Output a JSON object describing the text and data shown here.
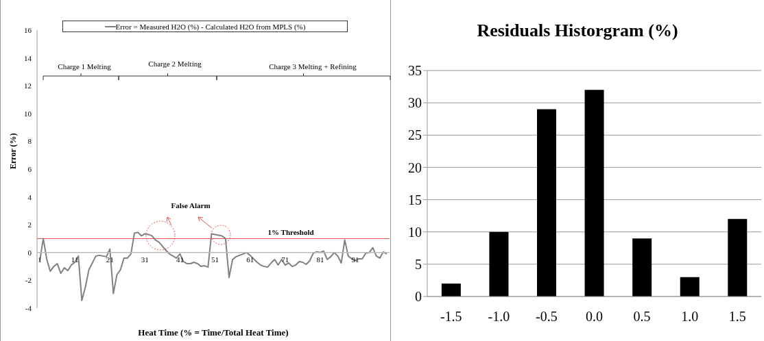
{
  "chart_data": [
    {
      "type": "line",
      "xlabel": "Heat Time (% = Time/Total Heat Time)",
      "ylabel": "Error (%)",
      "categories": [
        "1",
        null,
        null,
        null,
        null,
        null,
        null,
        null,
        null,
        null,
        "11",
        null,
        null,
        null,
        null,
        null,
        null,
        null,
        null,
        null,
        "21",
        null,
        null,
        null,
        null,
        null,
        null,
        null,
        null,
        null,
        "31",
        null,
        null,
        null,
        null,
        null,
        null,
        null,
        null,
        null,
        "41",
        null,
        null,
        null,
        null,
        null,
        null,
        null,
        null,
        null,
        "51",
        null,
        null,
        null,
        null,
        null,
        null,
        null,
        null,
        null,
        "61",
        null,
        null,
        null,
        null,
        null,
        null,
        null,
        null,
        null,
        "71",
        null,
        null,
        null,
        null,
        null,
        null,
        null,
        null,
        null,
        "81",
        null,
        null,
        null,
        null,
        null,
        null,
        null,
        null,
        null,
        "91",
        null,
        null,
        null,
        null,
        null,
        null,
        null,
        null,
        null
      ],
      "series": [
        {
          "name": "Error = Measured H2O (%) - Calculated H2O from MPLS (%)",
          "color": "#808080",
          "values": [
            -0.6,
            1.0,
            -0.5,
            -1.35,
            -1.0,
            -0.8,
            -1.5,
            -1.1,
            -1.3,
            -0.9,
            -0.7,
            -0.25,
            -3.45,
            -2.5,
            -1.25,
            -0.75,
            -0.25,
            -0.2,
            -0.25,
            -0.3,
            0.25,
            -2.95,
            -1.6,
            -1.25,
            -0.4,
            -0.4,
            -0.1,
            1.4,
            1.45,
            1.2,
            1.35,
            1.3,
            1.2,
            0.9,
            0.75,
            0.45,
            0.15,
            -0.1,
            -0.25,
            -0.4,
            -0.1,
            -0.65,
            -0.8,
            -0.8,
            -0.7,
            -0.8,
            -1.0,
            -0.95,
            -1.05,
            1.35,
            1.3,
            1.25,
            1.2,
            1.0,
            -1.8,
            -0.5,
            -0.3,
            -0.2,
            -0.1,
            0.0,
            -0.2,
            -0.45,
            -0.7,
            -0.9,
            -1.0,
            -1.05,
            -0.75,
            -0.5,
            -0.9,
            -0.5,
            -0.9,
            -0.75,
            -1.0,
            -0.9,
            -0.65,
            -0.7,
            -0.85,
            -0.6,
            -0.05,
            0.05,
            0.0,
            0.1,
            -0.5,
            -0.3,
            0.0,
            -0.25,
            -0.75,
            0.9,
            -0.25,
            -0.45,
            -0.6,
            -0.45,
            -0.45,
            -0.05,
            0.0,
            0.35,
            -0.25,
            -0.4,
            0.05,
            -0.1
          ]
        }
      ],
      "ylim": [
        -4,
        16
      ],
      "yticks": [
        -4,
        -2,
        0,
        2,
        4,
        6,
        8,
        10,
        12,
        14,
        16
      ],
      "grid": false,
      "legend": "top",
      "marker": "none",
      "line_style": "solid",
      "ref_lines": [
        {
          "axis": "y",
          "value": 1,
          "label": "1% Threshold",
          "color": "#e8504f"
        }
      ],
      "annotations": [
        "Charge 1 Melting",
        "Charge 2 Melting",
        "Charge 3 Melting + Refining",
        "False Alarm"
      ]
    },
    {
      "type": "bar",
      "title": "Residuals Historgram (%)",
      "categories": [
        "-1.5",
        "-1.0",
        "-0.5",
        "0.0",
        "0.5",
        "1.0",
        "1.5"
      ],
      "values": [
        2,
        10,
        29,
        32,
        9,
        3,
        12
      ],
      "color": "#000000",
      "ylim": [
        0,
        35
      ],
      "yticks": [
        0,
        5,
        10,
        15,
        20,
        25,
        30,
        35
      ],
      "grid": "y"
    }
  ]
}
